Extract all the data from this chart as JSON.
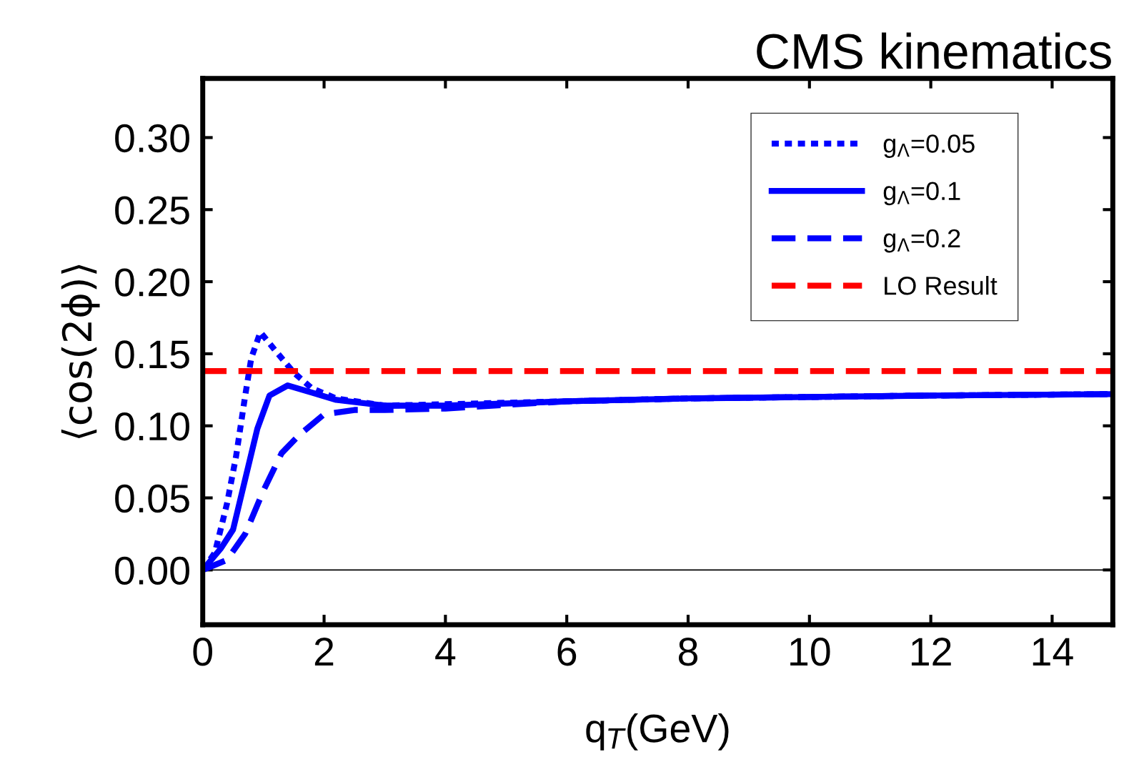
{
  "chart_data": {
    "type": "line",
    "title": "CMS kinematics",
    "xlabel": "q$_{T}$(GeV)",
    "ylabel": "⟨cos(2ϕ)⟩",
    "xlim": [
      0,
      15
    ],
    "ylim": [
      -0.038,
      0.341
    ],
    "xticks": [
      0,
      2,
      4,
      6,
      8,
      10,
      12,
      14
    ],
    "yticks": [
      {
        "value": 0,
        "label": "0.00"
      },
      {
        "value": 0.05,
        "label": "0.05"
      },
      {
        "value": 0.1,
        "label": "0.10"
      },
      {
        "value": 0.15,
        "label": "0.15"
      },
      {
        "value": 0.2,
        "label": "0.20"
      },
      {
        "value": 0.25,
        "label": "0.25"
      },
      {
        "value": 0.3,
        "label": "0.30"
      }
    ],
    "grid": false,
    "legend": "top right",
    "marker": "none",
    "series": [
      {
        "name": "g$_{Λ}$=0.05",
        "color": "#0000ff",
        "line_style": "dotted",
        "x": [
          0,
          0.2,
          0.4,
          0.55,
          0.7,
          0.8,
          0.95,
          1.2,
          1.5,
          1.8,
          2.2,
          3,
          4,
          6,
          8,
          10,
          12,
          15
        ],
        "values": [
          0,
          0.012,
          0.046,
          0.079,
          0.121,
          0.147,
          0.165,
          0.152,
          0.137,
          0.126,
          0.119,
          0.114,
          0.115,
          0.117,
          0.119,
          0.12,
          0.121,
          0.122
        ]
      },
      {
        "name": "g$_{Λ}$=0.1",
        "color": "#0000ff",
        "line_style": "solid",
        "x": [
          0,
          0.3,
          0.5,
          0.7,
          0.9,
          1.1,
          1.4,
          1.8,
          2.2,
          3,
          4,
          6,
          8,
          10,
          12,
          15
        ],
        "values": [
          0,
          0.015,
          0.028,
          0.063,
          0.098,
          0.121,
          0.128,
          0.123,
          0.118,
          0.114,
          0.114,
          0.117,
          0.119,
          0.12,
          0.121,
          0.122
        ]
      },
      {
        "name": "g$_{Λ}$=0.2",
        "color": "#0000ff",
        "line_style": "dashed",
        "x": [
          0,
          0.4,
          0.7,
          1.0,
          1.3,
          1.6,
          2.0,
          2.5,
          3,
          4,
          6,
          8,
          10,
          12,
          15
        ],
        "values": [
          0,
          0.007,
          0.025,
          0.055,
          0.081,
          0.094,
          0.108,
          0.111,
          0.111,
          0.112,
          0.117,
          0.119,
          0.12,
          0.121,
          0.122
        ]
      },
      {
        "name": "LO Result",
        "color": "#ff0000",
        "line_style": "dashed",
        "x": [
          0,
          15
        ],
        "values": [
          0.138,
          0.138
        ]
      }
    ],
    "ref_lines": [
      {
        "axis": "y",
        "value": 0,
        "color": "#000000",
        "line_style": "solid"
      }
    ]
  }
}
